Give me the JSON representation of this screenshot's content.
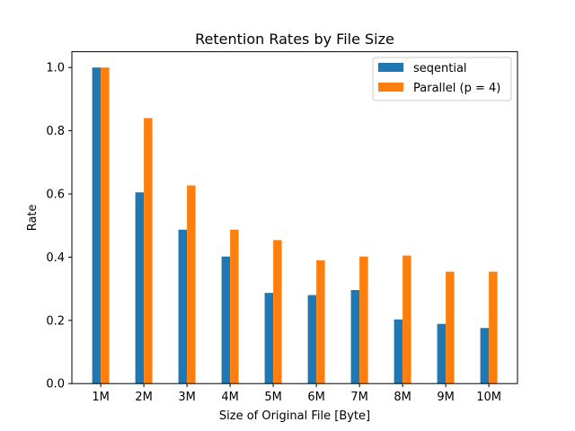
{
  "chart_data": {
    "type": "bar",
    "title": "Retention Rates by File Size",
    "xlabel": "Size of Original File [Byte]",
    "ylabel": "Rate",
    "ylim": [
      0,
      1.05
    ],
    "yticks": [
      "0.0",
      "0.2",
      "0.4",
      "0.6",
      "0.8",
      "1.0"
    ],
    "grid": false,
    "legend_position": "top-right",
    "categories": [
      "1M",
      "2M",
      "3M",
      "4M",
      "5M",
      "6M",
      "7M",
      "8M",
      "9M",
      "10M"
    ],
    "series": [
      {
        "name": "seqential",
        "color": "#1f77b4",
        "values": [
          1.0,
          0.605,
          0.487,
          0.402,
          0.287,
          0.28,
          0.296,
          0.203,
          0.189,
          0.176
        ]
      },
      {
        "name": "Parallel (p = 4)",
        "color": "#ff7f0e",
        "values": [
          1.0,
          0.84,
          0.627,
          0.487,
          0.454,
          0.39,
          0.402,
          0.405,
          0.354,
          0.354
        ]
      }
    ]
  }
}
